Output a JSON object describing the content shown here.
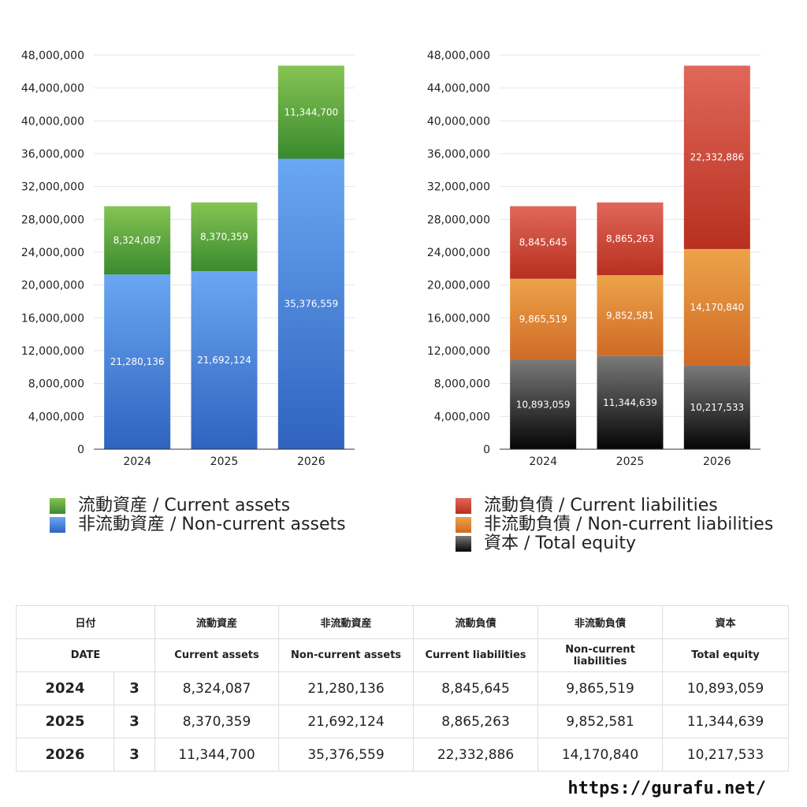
{
  "chart_data": [
    {
      "type": "bar",
      "stacked": true,
      "categories": [
        "2024",
        "2025",
        "2026"
      ],
      "ylim": [
        0,
        48000000
      ],
      "yticks": [
        0,
        4000000,
        8000000,
        12000000,
        16000000,
        20000000,
        24000000,
        28000000,
        32000000,
        36000000,
        40000000,
        44000000,
        48000000
      ],
      "series": [
        {
          "name": "非流動資産 / Non-current assets",
          "values": [
            21280136,
            21692124,
            35376559
          ],
          "color_top": "#6aa7f2",
          "color_bottom": "#2f63bf"
        },
        {
          "name": "流動資産 / Current assets",
          "values": [
            8324087,
            8370359,
            11344700
          ],
          "color_top": "#86c453",
          "color_bottom": "#3a8a2f"
        }
      ],
      "legend": "bottom"
    },
    {
      "type": "bar",
      "stacked": true,
      "categories": [
        "2024",
        "2025",
        "2026"
      ],
      "ylim": [
        0,
        48000000
      ],
      "yticks": [
        0,
        4000000,
        8000000,
        12000000,
        16000000,
        20000000,
        24000000,
        28000000,
        32000000,
        36000000,
        40000000,
        44000000,
        48000000
      ],
      "series": [
        {
          "name": "資本 / Total equity",
          "values": [
            10893059,
            11344639,
            10217533
          ],
          "color_top": "#7a7a7a",
          "color_bottom": "#050505"
        },
        {
          "name": "非流動負債 / Non-current liabilities",
          "values": [
            9865519,
            9852581,
            14170840
          ],
          "color_top": "#eda349",
          "color_bottom": "#cf6a26"
        },
        {
          "name": "流動負債 / Current liabilities",
          "values": [
            8845645,
            8865263,
            22332886
          ],
          "color_top": "#e0675a",
          "color_bottom": "#b8301f"
        }
      ],
      "legend": "bottom"
    }
  ],
  "legend_left": [
    {
      "label": "流動資産 / Current assets",
      "color": "#5fae45"
    },
    {
      "label": "非流動資産 / Non-current assets",
      "color": "#4a86dc"
    }
  ],
  "legend_right": [
    {
      "label": "流動負債 / Current liabilities",
      "color": "#cf4a3a"
    },
    {
      "label": "非流動負債 / Non-current liabilities",
      "color": "#e4893a"
    },
    {
      "label": "資本 / Total equity",
      "color": "#2a2a2a"
    }
  ],
  "table": {
    "header_ja": [
      "日付",
      "",
      "流動資産",
      "非流動資産",
      "流動負債",
      "非流動負債",
      "資本"
    ],
    "header_en": [
      "DATE",
      "",
      "Current assets",
      "Non-current assets",
      "Current liabilities",
      "Non-current liabilities",
      "Total equity"
    ],
    "rows": [
      {
        "year": "2024",
        "count": "3",
        "values": [
          "8,324,087",
          "21,280,136",
          "8,845,645",
          "9,865,519",
          "10,893,059"
        ]
      },
      {
        "year": "2025",
        "count": "3",
        "values": [
          "8,370,359",
          "21,692,124",
          "8,865,263",
          "9,852,581",
          "11,344,639"
        ]
      },
      {
        "year": "2026",
        "count": "3",
        "values": [
          "11,344,700",
          "35,376,559",
          "22,332,886",
          "14,170,840",
          "10,217,533"
        ]
      }
    ]
  },
  "site_url": "https://gurafu.net/"
}
